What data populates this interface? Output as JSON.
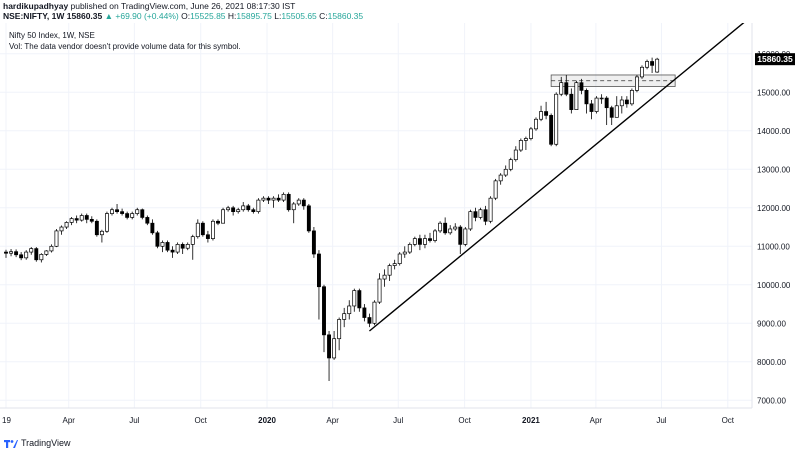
{
  "header": {
    "author": "hardikupadhyay",
    "published_text": " published on TradingView.com, June 26, 2021 08:17:30 IST",
    "symbol": "NSE:NIFTY, 1W",
    "last": "15860.35",
    "change": "▲ +69.90 (+0.44%)",
    "o_label": "O:",
    "o_value": "15525.85",
    "h_label": "H:",
    "h_value": "15895.75",
    "l_label": "L:",
    "l_value": "15505.65",
    "c_label": "C:",
    "c_value": "15860.35"
  },
  "legend": {
    "title": "Nifty 50 Index, 1W, NSE",
    "vol_note": "Vol: The data vendor doesn't provide volume data for this symbol."
  },
  "price_badge": "15860.35",
  "footer": {
    "brand": "TradingView"
  },
  "colors": {
    "accent_up": "#26a69a",
    "candle": "#000000",
    "grid": "#f0f3fa",
    "badge_bg": "#000000"
  },
  "chart_data": {
    "type": "candlestick",
    "interval": "1W",
    "ylim": [
      6800,
      16800
    ],
    "y_ticks": [
      7000,
      8000,
      9000,
      10000,
      11000,
      12000,
      13000,
      14000,
      15000,
      16000
    ],
    "y_tick_labels": [
      "7000.00",
      "8000.00",
      "9000.00",
      "10000.00",
      "11000.00",
      "12000.00",
      "13000.00",
      "14000.00",
      "15000.00",
      "16000.00"
    ],
    "x_range": [
      "2019-01-04",
      "2021-10-29"
    ],
    "x_ticks": [
      {
        "date": "2019-01-04",
        "label": "19",
        "bold": false
      },
      {
        "date": "2019-04-01",
        "label": "Apr",
        "bold": false
      },
      {
        "date": "2019-07-01",
        "label": "Jul",
        "bold": false
      },
      {
        "date": "2019-10-01",
        "label": "Oct",
        "bold": false
      },
      {
        "date": "2020-01-01",
        "label": "2020",
        "bold": true
      },
      {
        "date": "2020-04-01",
        "label": "Apr",
        "bold": false
      },
      {
        "date": "2020-07-01",
        "label": "Jul",
        "bold": false
      },
      {
        "date": "2020-10-01",
        "label": "Oct",
        "bold": false
      },
      {
        "date": "2021-01-01",
        "label": "2021",
        "bold": true
      },
      {
        "date": "2021-04-01",
        "label": "Apr",
        "bold": false
      },
      {
        "date": "2021-07-01",
        "label": "Jul",
        "bold": false
      },
      {
        "date": "2021-10-01",
        "label": "Oct",
        "bold": false
      }
    ],
    "candles": [
      {
        "date": "2019-01-04",
        "o": 10850,
        "h": 10910,
        "l": 10700,
        "c": 10820
      },
      {
        "date": "2019-01-11",
        "o": 10820,
        "h": 10930,
        "l": 10740,
        "c": 10860
      },
      {
        "date": "2019-01-18",
        "o": 10860,
        "h": 10920,
        "l": 10720,
        "c": 10780
      },
      {
        "date": "2019-01-25",
        "o": 10780,
        "h": 10850,
        "l": 10640,
        "c": 10700
      },
      {
        "date": "2019-02-01",
        "o": 10700,
        "h": 10900,
        "l": 10650,
        "c": 10850
      },
      {
        "date": "2019-02-08",
        "o": 10850,
        "h": 10980,
        "l": 10780,
        "c": 10940
      },
      {
        "date": "2019-02-15",
        "o": 10940,
        "h": 10980,
        "l": 10600,
        "c": 10650
      },
      {
        "date": "2019-02-22",
        "o": 10650,
        "h": 10820,
        "l": 10580,
        "c": 10790
      },
      {
        "date": "2019-03-01",
        "o": 10790,
        "h": 10900,
        "l": 10750,
        "c": 10880
      },
      {
        "date": "2019-03-08",
        "o": 10880,
        "h": 11050,
        "l": 10840,
        "c": 11000
      },
      {
        "date": "2019-03-15",
        "o": 11000,
        "h": 11450,
        "l": 10980,
        "c": 11400
      },
      {
        "date": "2019-03-22",
        "o": 11400,
        "h": 11540,
        "l": 11300,
        "c": 11500
      },
      {
        "date": "2019-03-29",
        "o": 11500,
        "h": 11650,
        "l": 11450,
        "c": 11620
      },
      {
        "date": "2019-04-05",
        "o": 11620,
        "h": 11760,
        "l": 11550,
        "c": 11720
      },
      {
        "date": "2019-04-12",
        "o": 11720,
        "h": 11800,
        "l": 11600,
        "c": 11680
      },
      {
        "date": "2019-04-19",
        "o": 11680,
        "h": 11850,
        "l": 11640,
        "c": 11800
      },
      {
        "date": "2019-04-26",
        "o": 11800,
        "h": 11850,
        "l": 11600,
        "c": 11700
      },
      {
        "date": "2019-05-03",
        "o": 11700,
        "h": 11780,
        "l": 11600,
        "c": 11650
      },
      {
        "date": "2019-05-10",
        "o": 11650,
        "h": 11700,
        "l": 11250,
        "c": 11300
      },
      {
        "date": "2019-05-17",
        "o": 11300,
        "h": 11430,
        "l": 11100,
        "c": 11390
      },
      {
        "date": "2019-05-24",
        "o": 11390,
        "h": 11900,
        "l": 11350,
        "c": 11850
      },
      {
        "date": "2019-05-31",
        "o": 11850,
        "h": 12000,
        "l": 11800,
        "c": 11950
      },
      {
        "date": "2019-06-07",
        "o": 11950,
        "h": 12100,
        "l": 11850,
        "c": 11900
      },
      {
        "date": "2019-06-14",
        "o": 11900,
        "h": 11980,
        "l": 11800,
        "c": 11850
      },
      {
        "date": "2019-06-21",
        "o": 11850,
        "h": 11900,
        "l": 11700,
        "c": 11750
      },
      {
        "date": "2019-06-28",
        "o": 11750,
        "h": 11900,
        "l": 11700,
        "c": 11850
      },
      {
        "date": "2019-07-05",
        "o": 11850,
        "h": 12000,
        "l": 11800,
        "c": 11950
      },
      {
        "date": "2019-07-12",
        "o": 11950,
        "h": 11980,
        "l": 11700,
        "c": 11750
      },
      {
        "date": "2019-07-19",
        "o": 11750,
        "h": 11800,
        "l": 11550,
        "c": 11600
      },
      {
        "date": "2019-07-26",
        "o": 11600,
        "h": 11700,
        "l": 11300,
        "c": 11350
      },
      {
        "date": "2019-08-02",
        "o": 11350,
        "h": 11400,
        "l": 10950,
        "c": 11000
      },
      {
        "date": "2019-08-09",
        "o": 11000,
        "h": 11150,
        "l": 10850,
        "c": 11100
      },
      {
        "date": "2019-08-16",
        "o": 11100,
        "h": 11150,
        "l": 10850,
        "c": 10900
      },
      {
        "date": "2019-08-23",
        "o": 10900,
        "h": 11000,
        "l": 10700,
        "c": 10850
      },
      {
        "date": "2019-08-30",
        "o": 10850,
        "h": 11100,
        "l": 10800,
        "c": 11050
      },
      {
        "date": "2019-09-06",
        "o": 11050,
        "h": 11100,
        "l": 10800,
        "c": 10950
      },
      {
        "date": "2019-09-13",
        "o": 10950,
        "h": 11100,
        "l": 10900,
        "c": 11050
      },
      {
        "date": "2019-09-20",
        "o": 11050,
        "h": 11300,
        "l": 10650,
        "c": 11250
      },
      {
        "date": "2019-09-27",
        "o": 11250,
        "h": 11700,
        "l": 11200,
        "c": 11600
      },
      {
        "date": "2019-10-04",
        "o": 11600,
        "h": 11650,
        "l": 11250,
        "c": 11300
      },
      {
        "date": "2019-10-11",
        "o": 11300,
        "h": 11400,
        "l": 11100,
        "c": 11200
      },
      {
        "date": "2019-10-18",
        "o": 11200,
        "h": 11700,
        "l": 11150,
        "c": 11650
      },
      {
        "date": "2019-10-25",
        "o": 11650,
        "h": 11700,
        "l": 11550,
        "c": 11600
      },
      {
        "date": "2019-11-01",
        "o": 11600,
        "h": 12000,
        "l": 11600,
        "c": 11950
      },
      {
        "date": "2019-11-08",
        "o": 11950,
        "h": 12050,
        "l": 11900,
        "c": 12000
      },
      {
        "date": "2019-11-15",
        "o": 12000,
        "h": 12050,
        "l": 11800,
        "c": 11900
      },
      {
        "date": "2019-11-22",
        "o": 11900,
        "h": 12000,
        "l": 11850,
        "c": 11950
      },
      {
        "date": "2019-11-29",
        "o": 11950,
        "h": 12150,
        "l": 11900,
        "c": 12050
      },
      {
        "date": "2019-12-06",
        "o": 12050,
        "h": 12100,
        "l": 11900,
        "c": 11950
      },
      {
        "date": "2019-12-13",
        "o": 11950,
        "h": 12000,
        "l": 11850,
        "c": 11900
      },
      {
        "date": "2019-12-20",
        "o": 11900,
        "h": 12250,
        "l": 11850,
        "c": 12200
      },
      {
        "date": "2019-12-27",
        "o": 12200,
        "h": 12300,
        "l": 12150,
        "c": 12250
      },
      {
        "date": "2020-01-03",
        "o": 12250,
        "h": 12300,
        "l": 12100,
        "c": 12200
      },
      {
        "date": "2020-01-10",
        "o": 12200,
        "h": 12300,
        "l": 12000,
        "c": 12250
      },
      {
        "date": "2020-01-17",
        "o": 12250,
        "h": 12350,
        "l": 12150,
        "c": 12200
      },
      {
        "date": "2020-01-24",
        "o": 12200,
        "h": 12400,
        "l": 12150,
        "c": 12350
      },
      {
        "date": "2020-01-31",
        "o": 12350,
        "h": 12400,
        "l": 11900,
        "c": 11950
      },
      {
        "date": "2020-02-07",
        "o": 11950,
        "h": 12150,
        "l": 11600,
        "c": 12100
      },
      {
        "date": "2020-02-14",
        "o": 12100,
        "h": 12250,
        "l": 12050,
        "c": 12200
      },
      {
        "date": "2020-02-21",
        "o": 12200,
        "h": 12250,
        "l": 11950,
        "c": 12050
      },
      {
        "date": "2020-02-28",
        "o": 12050,
        "h": 12100,
        "l": 11350,
        "c": 11400
      },
      {
        "date": "2020-03-06",
        "o": 11400,
        "h": 11500,
        "l": 10700,
        "c": 10800
      },
      {
        "date": "2020-03-13",
        "o": 10800,
        "h": 10900,
        "l": 9100,
        "c": 9950
      },
      {
        "date": "2020-03-20",
        "o": 9950,
        "h": 10000,
        "l": 8250,
        "c": 8700
      },
      {
        "date": "2020-03-27",
        "o": 8700,
        "h": 8800,
        "l": 7500,
        "c": 8100
      },
      {
        "date": "2020-04-03",
        "o": 8100,
        "h": 8800,
        "l": 8050,
        "c": 8600
      },
      {
        "date": "2020-04-10",
        "o": 8600,
        "h": 9150,
        "l": 8300,
        "c": 9100
      },
      {
        "date": "2020-04-17",
        "o": 9100,
        "h": 9400,
        "l": 8900,
        "c": 9250
      },
      {
        "date": "2020-04-24",
        "o": 9250,
        "h": 9600,
        "l": 9100,
        "c": 9450
      },
      {
        "date": "2020-05-01",
        "o": 9450,
        "h": 9900,
        "l": 9300,
        "c": 9850
      },
      {
        "date": "2020-05-08",
        "o": 9850,
        "h": 9900,
        "l": 9300,
        "c": 9400
      },
      {
        "date": "2020-05-15",
        "o": 9400,
        "h": 9500,
        "l": 9050,
        "c": 9150
      },
      {
        "date": "2020-05-22",
        "o": 9150,
        "h": 9250,
        "l": 8900,
        "c": 9000
      },
      {
        "date": "2020-05-29",
        "o": 9000,
        "h": 9600,
        "l": 8950,
        "c": 9550
      },
      {
        "date": "2020-06-05",
        "o": 9550,
        "h": 10300,
        "l": 9500,
        "c": 10150
      },
      {
        "date": "2020-06-12",
        "o": 10150,
        "h": 10400,
        "l": 9950,
        "c": 10250
      },
      {
        "date": "2020-06-19",
        "o": 10250,
        "h": 10550,
        "l": 10100,
        "c": 10500
      },
      {
        "date": "2020-06-26",
        "o": 10500,
        "h": 10650,
        "l": 10400,
        "c": 10550
      },
      {
        "date": "2020-07-03",
        "o": 10550,
        "h": 10850,
        "l": 10500,
        "c": 10800
      },
      {
        "date": "2020-07-10",
        "o": 10800,
        "h": 11000,
        "l": 10700,
        "c": 10850
      },
      {
        "date": "2020-07-17",
        "o": 10850,
        "h": 11100,
        "l": 10800,
        "c": 11050
      },
      {
        "date": "2020-07-24",
        "o": 11050,
        "h": 11250,
        "l": 11000,
        "c": 11200
      },
      {
        "date": "2020-07-31",
        "o": 11200,
        "h": 11300,
        "l": 10900,
        "c": 11050
      },
      {
        "date": "2020-08-07",
        "o": 11050,
        "h": 11300,
        "l": 10950,
        "c": 11200
      },
      {
        "date": "2020-08-14",
        "o": 11200,
        "h": 11350,
        "l": 11100,
        "c": 11150
      },
      {
        "date": "2020-08-21",
        "o": 11150,
        "h": 11450,
        "l": 11100,
        "c": 11400
      },
      {
        "date": "2020-08-28",
        "o": 11400,
        "h": 11650,
        "l": 11350,
        "c": 11600
      },
      {
        "date": "2020-09-04",
        "o": 11600,
        "h": 11750,
        "l": 11300,
        "c": 11350
      },
      {
        "date": "2020-09-11",
        "o": 11350,
        "h": 11550,
        "l": 11300,
        "c": 11450
      },
      {
        "date": "2020-09-18",
        "o": 11450,
        "h": 11600,
        "l": 11400,
        "c": 11500
      },
      {
        "date": "2020-09-25",
        "o": 11500,
        "h": 11550,
        "l": 10800,
        "c": 11050
      },
      {
        "date": "2020-10-02",
        "o": 11050,
        "h": 11500,
        "l": 11000,
        "c": 11450
      },
      {
        "date": "2020-10-09",
        "o": 11450,
        "h": 11950,
        "l": 11400,
        "c": 11900
      },
      {
        "date": "2020-10-16",
        "o": 11900,
        "h": 12000,
        "l": 11650,
        "c": 11750
      },
      {
        "date": "2020-10-23",
        "o": 11750,
        "h": 12000,
        "l": 11700,
        "c": 11950
      },
      {
        "date": "2020-10-30",
        "o": 11950,
        "h": 12050,
        "l": 11550,
        "c": 11650
      },
      {
        "date": "2020-11-06",
        "o": 11650,
        "h": 12300,
        "l": 11600,
        "c": 12250
      },
      {
        "date": "2020-11-13",
        "o": 12250,
        "h": 12750,
        "l": 12200,
        "c": 12700
      },
      {
        "date": "2020-11-20",
        "o": 12700,
        "h": 12900,
        "l": 12600,
        "c": 12850
      },
      {
        "date": "2020-11-27",
        "o": 12850,
        "h": 13100,
        "l": 12800,
        "c": 13000
      },
      {
        "date": "2020-12-04",
        "o": 13000,
        "h": 13300,
        "l": 12950,
        "c": 13250
      },
      {
        "date": "2020-12-11",
        "o": 13250,
        "h": 13600,
        "l": 13200,
        "c": 13500
      },
      {
        "date": "2020-12-18",
        "o": 13500,
        "h": 13800,
        "l": 13450,
        "c": 13750
      },
      {
        "date": "2020-12-25",
        "o": 13750,
        "h": 13850,
        "l": 13500,
        "c": 13800
      },
      {
        "date": "2021-01-01",
        "o": 13800,
        "h": 14100,
        "l": 13750,
        "c": 14050
      },
      {
        "date": "2021-01-08",
        "o": 14050,
        "h": 14350,
        "l": 14000,
        "c": 14300
      },
      {
        "date": "2021-01-15",
        "o": 14300,
        "h": 14650,
        "l": 14250,
        "c": 14500
      },
      {
        "date": "2021-01-22",
        "o": 14500,
        "h": 14750,
        "l": 14300,
        "c": 14400
      },
      {
        "date": "2021-01-29",
        "o": 14400,
        "h": 14450,
        "l": 13600,
        "c": 13650
      },
      {
        "date": "2021-02-05",
        "o": 13650,
        "h": 15000,
        "l": 13600,
        "c": 14950
      },
      {
        "date": "2021-02-12",
        "o": 14950,
        "h": 15400,
        "l": 14900,
        "c": 15250
      },
      {
        "date": "2021-02-19",
        "o": 15250,
        "h": 15450,
        "l": 14900,
        "c": 14950
      },
      {
        "date": "2021-02-26",
        "o": 14950,
        "h": 15100,
        "l": 14450,
        "c": 14550
      },
      {
        "date": "2021-03-05",
        "o": 14550,
        "h": 15300,
        "l": 14550,
        "c": 15250
      },
      {
        "date": "2021-03-12",
        "o": 15250,
        "h": 15350,
        "l": 14950,
        "c": 15050
      },
      {
        "date": "2021-03-19",
        "o": 15050,
        "h": 15100,
        "l": 14450,
        "c": 14700
      },
      {
        "date": "2021-03-26",
        "o": 14700,
        "h": 14800,
        "l": 14300,
        "c": 14500
      },
      {
        "date": "2021-04-02",
        "o": 14500,
        "h": 14900,
        "l": 14450,
        "c": 14850
      },
      {
        "date": "2021-04-09",
        "o": 14850,
        "h": 14950,
        "l": 14700,
        "c": 14850
      },
      {
        "date": "2021-04-16",
        "o": 14850,
        "h": 14900,
        "l": 14150,
        "c": 14600
      },
      {
        "date": "2021-04-23",
        "o": 14600,
        "h": 14650,
        "l": 14150,
        "c": 14350
      },
      {
        "date": "2021-04-30",
        "o": 14350,
        "h": 14900,
        "l": 14350,
        "c": 14650
      },
      {
        "date": "2021-05-07",
        "o": 14650,
        "h": 14900,
        "l": 14450,
        "c": 14800
      },
      {
        "date": "2021-05-14",
        "o": 14800,
        "h": 14900,
        "l": 14600,
        "c": 14700
      },
      {
        "date": "2021-05-21",
        "o": 14700,
        "h": 15100,
        "l": 14650,
        "c": 15050
      },
      {
        "date": "2021-05-28",
        "o": 15050,
        "h": 15450,
        "l": 15000,
        "c": 15400
      },
      {
        "date": "2021-06-04",
        "o": 15400,
        "h": 15700,
        "l": 15350,
        "c": 15650
      },
      {
        "date": "2021-06-11",
        "o": 15650,
        "h": 15850,
        "l": 15600,
        "c": 15800
      },
      {
        "date": "2021-06-18",
        "o": 15800,
        "h": 15900,
        "l": 15500,
        "c": 15700
      },
      {
        "date": "2021-06-25",
        "o": 15525.85,
        "h": 15895.75,
        "l": 15505.65,
        "c": 15860.35
      }
    ],
    "annotations": {
      "trendline": {
        "from": {
          "date": "2020-05-22",
          "price": 8800
        },
        "to": {
          "date": "2021-10-29",
          "price": 16900
        }
      },
      "resistance_zone": {
        "from_date": "2021-01-29",
        "to_date": "2021-06-25",
        "top": 15450,
        "bottom": 15150,
        "dashed": 15300
      },
      "last_price": 15860.35
    },
    "grid": true
  }
}
